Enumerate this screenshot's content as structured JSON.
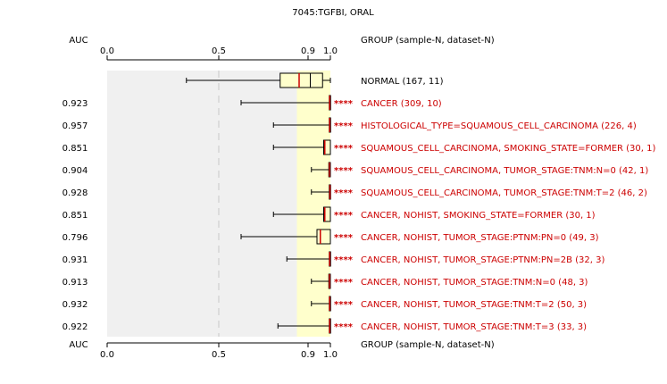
{
  "chart_data": {
    "type": "boxplot",
    "title": "7045:TGFBI, ORAL",
    "auc_header": "AUC",
    "group_header": "GROUP (sample-N, dataset-N)",
    "x_ticks": [
      0.0,
      0.5,
      0.9,
      1.0
    ],
    "x_tick_labels": [
      "0.0",
      "0.5",
      "0.9",
      "1.0"
    ],
    "xlim": [
      0.0,
      1.0
    ],
    "highlight_range": [
      0.85,
      1.0
    ],
    "significance_label": "****",
    "colors": {
      "panel": "#f0f0f0",
      "highlight": "#ffffcc",
      "significant_text": "#cc0000",
      "median": "#cc0000",
      "box_fill": "#ffffcc"
    },
    "rows": [
      {
        "group": "NORMAL (167, 11)",
        "auc": "",
        "stars": "",
        "significant": false,
        "whisker_low": 0.355,
        "q1": 0.775,
        "median": 0.86,
        "q3": 0.965,
        "whisker_high": 1.0
      },
      {
        "group": "CANCER (309, 10)",
        "auc": "0.923",
        "stars": "****",
        "significant": true,
        "whisker_low": 0.6,
        "q1": 0.995,
        "median": 0.997,
        "q3": 0.999,
        "whisker_high": 1.0
      },
      {
        "group": "HISTOLOGICAL_TYPE=SQUAMOUS_CELL_CARCINOMA (226, 4)",
        "auc": "0.957",
        "stars": "****",
        "significant": true,
        "whisker_low": 0.745,
        "q1": 0.995,
        "median": 0.997,
        "q3": 0.999,
        "whisker_high": 1.0
      },
      {
        "group": "SQUAMOUS_CELL_CARCINOMA, SMOKING_STATE=FORMER (30, 1)",
        "auc": "0.851",
        "stars": "****",
        "significant": true,
        "whisker_low": 0.745,
        "q1": 0.97,
        "median": 0.975,
        "q3": 1.0,
        "whisker_high": 1.0
      },
      {
        "group": "SQUAMOUS_CELL_CARCINOMA, TUMOR_STAGE:TNM:N=0 (42, 1)",
        "auc": "0.904",
        "stars": "****",
        "significant": true,
        "whisker_low": 0.915,
        "q1": 0.993,
        "median": 0.996,
        "q3": 1.0,
        "whisker_high": 1.0
      },
      {
        "group": "SQUAMOUS_CELL_CARCINOMA, TUMOR_STAGE:TNM:T=2 (46, 2)",
        "auc": "0.928",
        "stars": "****",
        "significant": true,
        "whisker_low": 0.915,
        "q1": 0.995,
        "median": 0.998,
        "q3": 1.0,
        "whisker_high": 1.0
      },
      {
        "group": "CANCER, NOHIST, SMOKING_STATE=FORMER (30, 1)",
        "auc": "0.851",
        "stars": "****",
        "significant": true,
        "whisker_low": 0.745,
        "q1": 0.97,
        "median": 0.975,
        "q3": 1.0,
        "whisker_high": 1.0
      },
      {
        "group": "CANCER, NOHIST, TUMOR_STAGE:PTNM:PN=0 (49, 3)",
        "auc": "0.796",
        "stars": "****",
        "significant": true,
        "whisker_low": 0.6,
        "q1": 0.94,
        "median": 0.955,
        "q3": 1.0,
        "whisker_high": 1.0
      },
      {
        "group": "CANCER, NOHIST, TUMOR_STAGE:PTNM:PN=2B (32, 3)",
        "auc": "0.931",
        "stars": "****",
        "significant": true,
        "whisker_low": 0.805,
        "q1": 0.995,
        "median": 0.997,
        "q3": 0.999,
        "whisker_high": 1.0
      },
      {
        "group": "CANCER, NOHIST, TUMOR_STAGE:TNM:N=0 (48, 3)",
        "auc": "0.913",
        "stars": "****",
        "significant": true,
        "whisker_low": 0.915,
        "q1": 0.993,
        "median": 0.996,
        "q3": 1.0,
        "whisker_high": 1.0
      },
      {
        "group": "CANCER, NOHIST, TUMOR_STAGE:TNM:T=2 (50, 3)",
        "auc": "0.932",
        "stars": "****",
        "significant": true,
        "whisker_low": 0.915,
        "q1": 0.995,
        "median": 0.997,
        "q3": 0.999,
        "whisker_high": 1.0
      },
      {
        "group": "CANCER, NOHIST, TUMOR_STAGE:TNM:T=3 (33, 3)",
        "auc": "0.922",
        "stars": "****",
        "significant": true,
        "whisker_low": 0.765,
        "q1": 0.995,
        "median": 0.997,
        "q3": 0.999,
        "whisker_high": 1.0
      }
    ]
  }
}
